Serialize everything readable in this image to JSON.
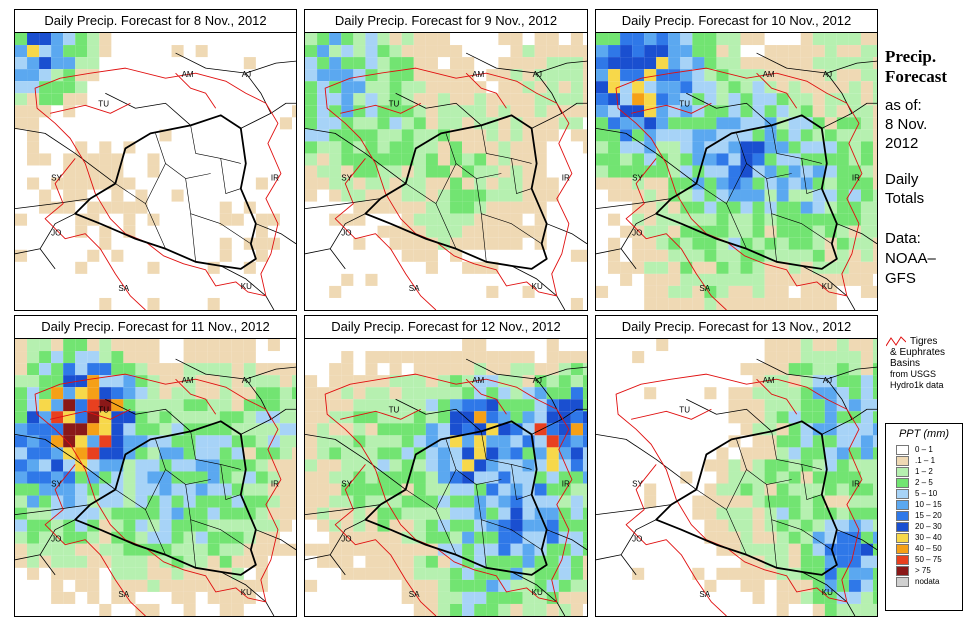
{
  "panels": [
    {
      "title": "Daily Precip. Forecast for  8 Nov., 2012"
    },
    {
      "title": "Daily Precip. Forecast for  9 Nov., 2012"
    },
    {
      "title": "Daily Precip. Forecast for  10 Nov., 2012"
    },
    {
      "title": "Daily Precip. Forecast for  11 Nov., 2012"
    },
    {
      "title": "Daily Precip. Forecast for  12 Nov., 2012"
    },
    {
      "title": "Daily Precip. Forecast for  13 Nov., 2012"
    }
  ],
  "country_labels": [
    "AM",
    "AJ",
    "TU",
    "SY",
    "IR",
    "JO",
    "SA",
    "KU"
  ],
  "sidebar": {
    "heading_line1": "Precip.",
    "heading_line2": "Forecast",
    "asof": "as of:",
    "date_line1": "8 Nov.",
    "date_line2": "2012",
    "daily_line1": "Daily",
    "daily_line2": "Totals",
    "data_line1": "Data:",
    "data_line2": "NOAA–",
    "data_line3": "GFS"
  },
  "basin_legend": {
    "line1": "Tigres",
    "line2": "& Euphrates",
    "line3": "Basins",
    "line4": "from USGS",
    "line5": "Hydro1k data"
  },
  "color_legend": {
    "title": "PPT (mm)",
    "items": [
      {
        "label": "0 – 1",
        "color": "#ffffff"
      },
      {
        "label": ".1 – 1",
        "color": "#efd9b4"
      },
      {
        "label": "1 – 2",
        "color": "#b6f0b0"
      },
      {
        "label": "2 – 5",
        "color": "#72e472"
      },
      {
        "label": "5 – 10",
        "color": "#a7d3f7"
      },
      {
        "label": "10 – 15",
        "color": "#5ba8f0"
      },
      {
        "label": "15 – 20",
        "color": "#2f78e8"
      },
      {
        "label": "20 – 30",
        "color": "#1a4fd0"
      },
      {
        "label": "30 – 40",
        "color": "#f7d84a"
      },
      {
        "label": "40 – 50",
        "color": "#f5a017"
      },
      {
        "label": "50 – 75",
        "color": "#e8401f"
      },
      {
        "label": "> 75",
        "color": "#8a1818"
      },
      {
        "label": "nodata",
        "color": "#d0d0d0"
      }
    ]
  },
  "map_colors": {
    "basin_outline": "#e01010",
    "border": "#000000"
  }
}
